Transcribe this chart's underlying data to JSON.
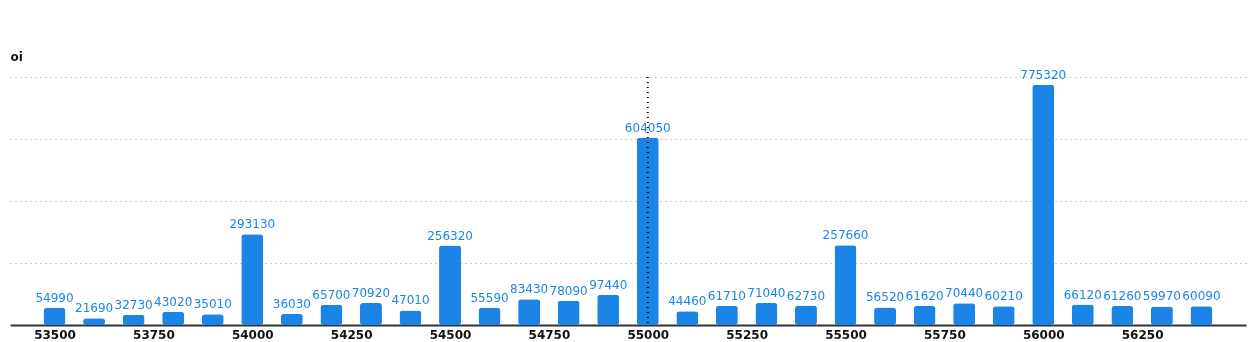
{
  "chart_data": {
    "type": "bar",
    "ylabel": "oi",
    "x": [
      53500,
      53600,
      53700,
      53800,
      53900,
      54000,
      54100,
      54200,
      54300,
      54400,
      54500,
      54600,
      54700,
      54800,
      54900,
      55000,
      55100,
      55200,
      55300,
      55400,
      55500,
      55600,
      55700,
      55800,
      55900,
      56000,
      56100,
      56200,
      56300,
      56400
    ],
    "values": [
      54990,
      21690,
      32730,
      43020,
      35010,
      293130,
      36030,
      65700,
      70920,
      47010,
      256320,
      55590,
      83430,
      78090,
      97440,
      604050,
      44460,
      61710,
      71040,
      62730,
      257660,
      56520,
      61620,
      70440,
      60210,
      775320,
      66120,
      61260,
      59970,
      60090
    ],
    "color": "#1a85e6",
    "data_labels": true,
    "xlim": [
      53400,
      56500
    ],
    "xticks": [
      53500,
      53750,
      54000,
      54250,
      54500,
      54750,
      55000,
      55250,
      55500,
      55750,
      56000,
      56250
    ],
    "ylim": [
      0,
      800000
    ],
    "yticks": [
      {
        "value": 200000,
        "label": null
      },
      {
        "value": 400000,
        "label": null
      },
      {
        "value": 600000,
        "label": null
      },
      {
        "value": 800000,
        "label": null
      }
    ],
    "grid": "y",
    "ref_lines": [
      {
        "axis": "x",
        "value": 55000,
        "color": "#000000",
        "line_style": "dotted"
      }
    ]
  }
}
